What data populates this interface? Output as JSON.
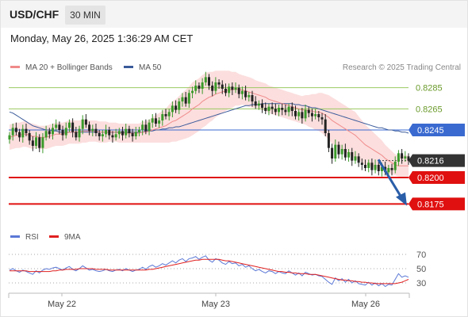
{
  "header": {
    "symbol": "USD/CHF",
    "timeframe": "30 MIN"
  },
  "datetime": "Monday, May 26, 2025 1:36:29 AM CET",
  "legend": {
    "ma20": {
      "label": "MA 20 + Bollinger Bands",
      "color": "#f08a8a"
    },
    "ma50": {
      "label": "MA 50",
      "color": "#3a5a9a"
    }
  },
  "credit": "Research © 2025 Trading Central",
  "rsi_legend": {
    "rsi": {
      "label": "RSI",
      "color": "#5b78d6"
    },
    "ma9": {
      "label": "9MA",
      "color": "#e02020"
    }
  },
  "colors": {
    "up": "#3a9a2a",
    "down": "#222222",
    "resistance": "#9ac860",
    "pivot": "#3a6ad0",
    "support": "#e01010",
    "arrow": "#2a5ea8",
    "band": "#fbd8d8"
  },
  "chart_data": [
    {
      "type": "candlestick",
      "x_ticks": [
        "May 22",
        "May 23",
        "May 26"
      ],
      "ylim": [
        0.8158,
        0.8308
      ],
      "levels": [
        {
          "value": 0.8285,
          "label": "0.8285",
          "kind": "resistance"
        },
        {
          "value": 0.8265,
          "label": "0.8265",
          "kind": "resistance"
        },
        {
          "value": 0.8245,
          "label": "0.8245",
          "kind": "pivot"
        },
        {
          "value": 0.8216,
          "label": "0.8216",
          "kind": "last"
        },
        {
          "value": 0.82,
          "label": "0.8200",
          "kind": "support"
        },
        {
          "value": 0.8175,
          "label": "0.8175",
          "kind": "support"
        }
      ],
      "closes": [
        0.824,
        0.8247,
        0.8243,
        0.8238,
        0.8246,
        0.8242,
        0.8235,
        0.823,
        0.8238,
        0.8228,
        0.8238,
        0.8244,
        0.8241,
        0.8247,
        0.825,
        0.8245,
        0.824,
        0.8247,
        0.8252,
        0.8243,
        0.8238,
        0.8246,
        0.8255,
        0.825,
        0.8244,
        0.8246,
        0.8242,
        0.8239,
        0.8241,
        0.8245,
        0.824,
        0.8238,
        0.8241,
        0.8244,
        0.824,
        0.8246,
        0.8242,
        0.8239,
        0.8243,
        0.8245,
        0.825,
        0.8244,
        0.8252,
        0.8256,
        0.8251,
        0.8254,
        0.826,
        0.8258,
        0.8262,
        0.8268,
        0.8264,
        0.8272,
        0.8276,
        0.827,
        0.828,
        0.8282,
        0.8287,
        0.8284,
        0.829,
        0.8295,
        0.8287,
        0.8282,
        0.829,
        0.8288,
        0.8284,
        0.828,
        0.8286,
        0.8283,
        0.8285,
        0.8279,
        0.8282,
        0.8276,
        0.8278,
        0.8272,
        0.8268,
        0.827,
        0.8266,
        0.8263,
        0.8267,
        0.8265,
        0.8262,
        0.8266,
        0.8264,
        0.8262,
        0.8267,
        0.8263,
        0.8258,
        0.8262,
        0.8256,
        0.8264,
        0.8261,
        0.8258,
        0.826,
        0.8257,
        0.8255,
        0.8242,
        0.8228,
        0.8218,
        0.8231,
        0.8222,
        0.8227,
        0.8219,
        0.8224,
        0.8216,
        0.822,
        0.8214,
        0.8212,
        0.8209,
        0.8214,
        0.8207,
        0.8212,
        0.8206,
        0.821,
        0.8205,
        0.8209,
        0.8207,
        0.8215,
        0.8223,
        0.8218,
        0.822,
        0.8216
      ],
      "ma20": [
        0.8238,
        0.8239,
        0.824,
        0.824,
        0.8241,
        0.8241,
        0.824,
        0.8239,
        0.8239,
        0.8238,
        0.8238,
        0.8238,
        0.8239,
        0.824,
        0.8241,
        0.8241,
        0.8241,
        0.8242,
        0.8243,
        0.8243,
        0.8243,
        0.8243,
        0.8244,
        0.8244,
        0.8244,
        0.8244,
        0.8244,
        0.8243,
        0.8243,
        0.8243,
        0.8243,
        0.8243,
        0.8243,
        0.8242,
        0.8242,
        0.8242,
        0.8242,
        0.8242,
        0.8242,
        0.8242,
        0.8243,
        0.8243,
        0.8244,
        0.8245,
        0.8246,
        0.8247,
        0.8248,
        0.8249,
        0.8251,
        0.8253,
        0.8254,
        0.8256,
        0.8258,
        0.826,
        0.8262,
        0.8265,
        0.8267,
        0.8269,
        0.8272,
        0.8274,
        0.8276,
        0.8277,
        0.8279,
        0.828,
        0.8281,
        0.8282,
        0.8283,
        0.8283,
        0.8284,
        0.8283,
        0.8283,
        0.8282,
        0.8281,
        0.828,
        0.8279,
        0.8278,
        0.8277,
        0.8276,
        0.8274,
        0.8273,
        0.8272,
        0.8271,
        0.827,
        0.8269,
        0.8268,
        0.8267,
        0.8266,
        0.8265,
        0.8264,
        0.8264,
        0.8263,
        0.8263,
        0.8262,
        0.8262,
        0.8261,
        0.8259,
        0.8257,
        0.8254,
        0.8252,
        0.825,
        0.8248,
        0.8246,
        0.8244,
        0.8242,
        0.824,
        0.8237,
        0.8234,
        0.8231,
        0.8229,
        0.8227,
        0.8225,
        0.8223,
        0.8221,
        0.8218,
        0.8216,
        0.8214,
        0.8212,
        0.8211,
        0.8211,
        0.8211,
        0.8211
      ],
      "bb_width": [
        0.0012,
        0.0012,
        0.0012,
        0.0012,
        0.0012,
        0.0012,
        0.0012,
        0.0012,
        0.0011,
        0.0011,
        0.0011,
        0.0011,
        0.0011,
        0.0011,
        0.0011,
        0.0011,
        0.0011,
        0.0011,
        0.0011,
        0.0011,
        0.0011,
        0.0011,
        0.0011,
        0.0011,
        0.001,
        0.001,
        0.001,
        0.001,
        0.001,
        0.001,
        0.0009,
        0.0009,
        0.0009,
        0.0009,
        0.0009,
        0.0009,
        0.0009,
        0.0009,
        0.0009,
        0.0009,
        0.001,
        0.001,
        0.0011,
        0.0012,
        0.0013,
        0.0014,
        0.0015,
        0.0016,
        0.0018,
        0.0019,
        0.002,
        0.0021,
        0.0022,
        0.0023,
        0.0024,
        0.0025,
        0.0025,
        0.0025,
        0.0025,
        0.0025,
        0.0024,
        0.0023,
        0.0022,
        0.0021,
        0.002,
        0.0019,
        0.0018,
        0.0017,
        0.0016,
        0.0015,
        0.0014,
        0.0014,
        0.0014,
        0.0014,
        0.0013,
        0.0013,
        0.0013,
        0.0013,
        0.0013,
        0.0013,
        0.0013,
        0.0013,
        0.0013,
        0.0013,
        0.0013,
        0.0013,
        0.0013,
        0.0013,
        0.0013,
        0.0014,
        0.0015,
        0.0016,
        0.0017,
        0.0018,
        0.0019,
        0.002,
        0.0021,
        0.0022,
        0.0022,
        0.0022,
        0.0022,
        0.0022,
        0.0022,
        0.0022,
        0.0022,
        0.0021,
        0.002,
        0.0019,
        0.0018,
        0.0017,
        0.0016,
        0.0015,
        0.0014,
        0.0013,
        0.0012,
        0.0011,
        0.001,
        0.001,
        0.001,
        0.001,
        0.001
      ],
      "ma50": [
        0.8262,
        0.8261,
        0.8259,
        0.8257,
        0.8255,
        0.8253,
        0.8251,
        0.8249,
        0.8248,
        0.8247,
        0.8246,
        0.8245,
        0.8245,
        0.8244,
        0.8244,
        0.8243,
        0.8243,
        0.8243,
        0.8243,
        0.8243,
        0.8243,
        0.8243,
        0.8243,
        0.8243,
        0.8243,
        0.8243,
        0.8243,
        0.8243,
        0.8243,
        0.8243,
        0.8243,
        0.8243,
        0.8243,
        0.8243,
        0.8243,
        0.8243,
        0.8243,
        0.8243,
        0.8243,
        0.8243,
        0.8243,
        0.8244,
        0.8244,
        0.8244,
        0.8245,
        0.8245,
        0.8246,
        0.8246,
        0.8247,
        0.8247,
        0.8248,
        0.8248,
        0.8249,
        0.825,
        0.8251,
        0.8252,
        0.8253,
        0.8254,
        0.8255,
        0.8256,
        0.8257,
        0.8258,
        0.8259,
        0.826,
        0.8261,
        0.8262,
        0.8263,
        0.8264,
        0.8265,
        0.8266,
        0.8267,
        0.8268,
        0.8268,
        0.8269,
        0.8269,
        0.8269,
        0.827,
        0.827,
        0.827,
        0.827,
        0.827,
        0.827,
        0.827,
        0.827,
        0.827,
        0.827,
        0.8269,
        0.8269,
        0.8268,
        0.8268,
        0.8267,
        0.8266,
        0.8266,
        0.8265,
        0.8264,
        0.8263,
        0.8262,
        0.8261,
        0.826,
        0.8259,
        0.8258,
        0.8257,
        0.8256,
        0.8255,
        0.8254,
        0.8253,
        0.8252,
        0.8251,
        0.825,
        0.8249,
        0.8248,
        0.8247,
        0.8247,
        0.8246,
        0.8245,
        0.8245,
        0.8244,
        0.8244,
        0.8243,
        0.8243,
        0.8242
      ]
    },
    {
      "type": "line",
      "title": "RSI",
      "ylim": [
        20,
        80
      ],
      "y_ticks": [
        70,
        50,
        30
      ],
      "rsi": [
        48,
        50,
        47,
        45,
        48,
        46,
        44,
        42,
        47,
        44,
        48,
        50,
        49,
        51,
        52,
        50,
        48,
        51,
        53,
        49,
        47,
        50,
        54,
        51,
        48,
        49,
        47,
        46,
        47,
        49,
        47,
        46,
        48,
        49,
        47,
        50,
        48,
        46,
        48,
        49,
        52,
        49,
        53,
        55,
        52,
        54,
        57,
        55,
        58,
        61,
        58,
        62,
        64,
        60,
        64,
        65,
        67,
        63,
        66,
        68,
        62,
        59,
        64,
        62,
        58,
        56,
        60,
        57,
        58,
        54,
        56,
        52,
        54,
        50,
        47,
        49,
        46,
        44,
        47,
        46,
        43,
        46,
        44,
        43,
        47,
        44,
        41,
        44,
        40,
        45,
        43,
        41,
        42,
        40,
        39,
        35,
        31,
        28,
        37,
        33,
        36,
        31,
        35,
        30,
        33,
        29,
        28,
        27,
        31,
        27,
        30,
        26,
        29,
        25,
        28,
        27,
        35,
        43,
        38,
        40,
        38
      ],
      "ma9": [
        47,
        47,
        47,
        47,
        47,
        47,
        46,
        46,
        46,
        46,
        46,
        46,
        46,
        47,
        47,
        48,
        48,
        49,
        49,
        49,
        49,
        50,
        50,
        50,
        50,
        50,
        49,
        49,
        49,
        49,
        48,
        48,
        48,
        48,
        48,
        48,
        48,
        48,
        48,
        48,
        48,
        48,
        49,
        49,
        50,
        51,
        52,
        53,
        54,
        55,
        56,
        57,
        58,
        59,
        60,
        61,
        62,
        62,
        63,
        63,
        63,
        63,
        63,
        63,
        62,
        61,
        61,
        60,
        59,
        58,
        57,
        56,
        55,
        54,
        53,
        52,
        51,
        50,
        49,
        48,
        47,
        46,
        46,
        45,
        45,
        44,
        44,
        43,
        43,
        43,
        42,
        42,
        42,
        41,
        40,
        39,
        38,
        37,
        36,
        35,
        34,
        34,
        33,
        33,
        32,
        32,
        31,
        31,
        30,
        30,
        29,
        29,
        29,
        29,
        29,
        29,
        29,
        30,
        31,
        33,
        35
      ]
    }
  ]
}
